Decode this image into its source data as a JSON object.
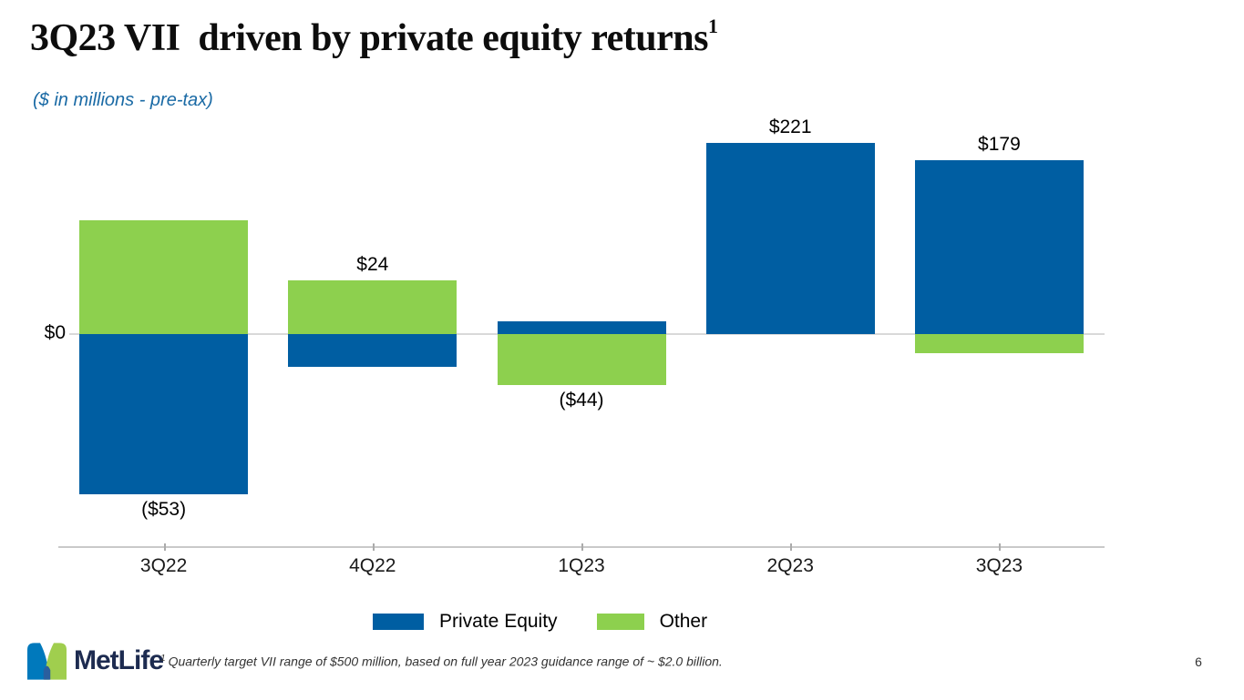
{
  "slide": {
    "title": "3Q23 VII  driven by private equity returns",
    "title_superscript": "1",
    "subtitle": "($ in millions - pre-tax)",
    "page_number": "6"
  },
  "chart_data": {
    "type": "bar",
    "stacked": true,
    "title": "",
    "xlabel": "",
    "ylabel": "$ in millions (pre-tax)",
    "categories": [
      "3Q22",
      "4Q22",
      "1Q23",
      "2Q23",
      "3Q23"
    ],
    "series": [
      {
        "name": "Private Equity",
        "color": "#005EA2",
        "values": [
          -185,
          -38,
          15,
          221,
          201
        ]
      },
      {
        "name": "Other",
        "color": "#8DD04E",
        "values": [
          132,
          62,
          -59,
          0,
          -22
        ]
      }
    ],
    "totals": [
      -53,
      24,
      -44,
      221,
      179
    ],
    "total_labels": [
      "($53)",
      "$24",
      "($44)",
      "$221",
      "$179"
    ],
    "y_axis": {
      "zero_label": "$0",
      "ylim": [
        -230,
        250
      ],
      "gridlines": "zero-line-only"
    },
    "legend_position": "bottom"
  },
  "footer": {
    "logo": {
      "wordmark": "MetLife"
    },
    "footnote_superscript": "1",
    "footnote_text": "Quarterly target VII range of $500 million, based on full year 2023 guidance range of ~ $2.0 billion."
  }
}
